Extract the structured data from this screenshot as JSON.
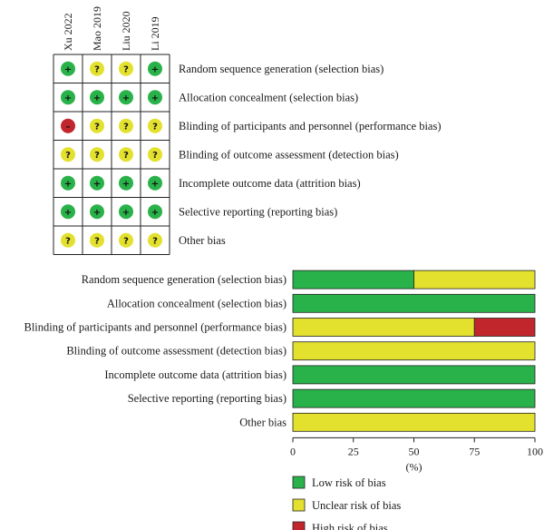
{
  "colors": {
    "low": "#2ab24a",
    "unclear": "#e3e12e",
    "high": "#c2262d"
  },
  "chart_data": [
    {
      "type": "table",
      "title": "",
      "studies": [
        "Xu 2022",
        "Mao 2019",
        "Liu 2020",
        "Li 2019"
      ],
      "domains": [
        "Random sequence generation (selection bias)",
        "Allocation concealment (selection bias)",
        "Blinding of participants and personnel (performance bias)",
        "Blinding of outcome assessment (detection bias)",
        "Incomplete outcome data (attrition bias)",
        "Selective reporting (reporting bias)",
        "Other bias"
      ],
      "judgements": [
        [
          "low",
          "unclear",
          "unclear",
          "low"
        ],
        [
          "low",
          "low",
          "low",
          "low"
        ],
        [
          "high",
          "unclear",
          "unclear",
          "unclear"
        ],
        [
          "unclear",
          "unclear",
          "unclear",
          "unclear"
        ],
        [
          "low",
          "low",
          "low",
          "low"
        ],
        [
          "low",
          "low",
          "low",
          "low"
        ],
        [
          "unclear",
          "unclear",
          "unclear",
          "unclear"
        ]
      ],
      "symbols": {
        "low": "+",
        "unclear": "?",
        "high": "–"
      }
    },
    {
      "type": "bar",
      "stacked": true,
      "orientation": "horizontal",
      "title": "",
      "categories": [
        "Random sequence generation (selection bias)",
        "Allocation concealment (selection bias)",
        "Blinding of participants and personnel (performance bias)",
        "Blinding of outcome assessment (detection bias)",
        "Incomplete outcome data (attrition bias)",
        "Selective reporting (reporting bias)",
        "Other bias"
      ],
      "series": [
        {
          "name": "Low risk of bias",
          "key": "low",
          "values": [
            50,
            100,
            0,
            0,
            100,
            100,
            0
          ]
        },
        {
          "name": "Unclear risk of bias",
          "key": "unclear",
          "values": [
            50,
            0,
            75,
            100,
            0,
            0,
            100
          ]
        },
        {
          "name": "High risk of bias",
          "key": "high",
          "values": [
            0,
            0,
            25,
            0,
            0,
            0,
            0
          ]
        }
      ],
      "xlabel": "(%)",
      "xlim": [
        0,
        100
      ],
      "xticks": [
        0,
        25,
        50,
        75,
        100
      ],
      "legend_position": "bottom"
    }
  ]
}
